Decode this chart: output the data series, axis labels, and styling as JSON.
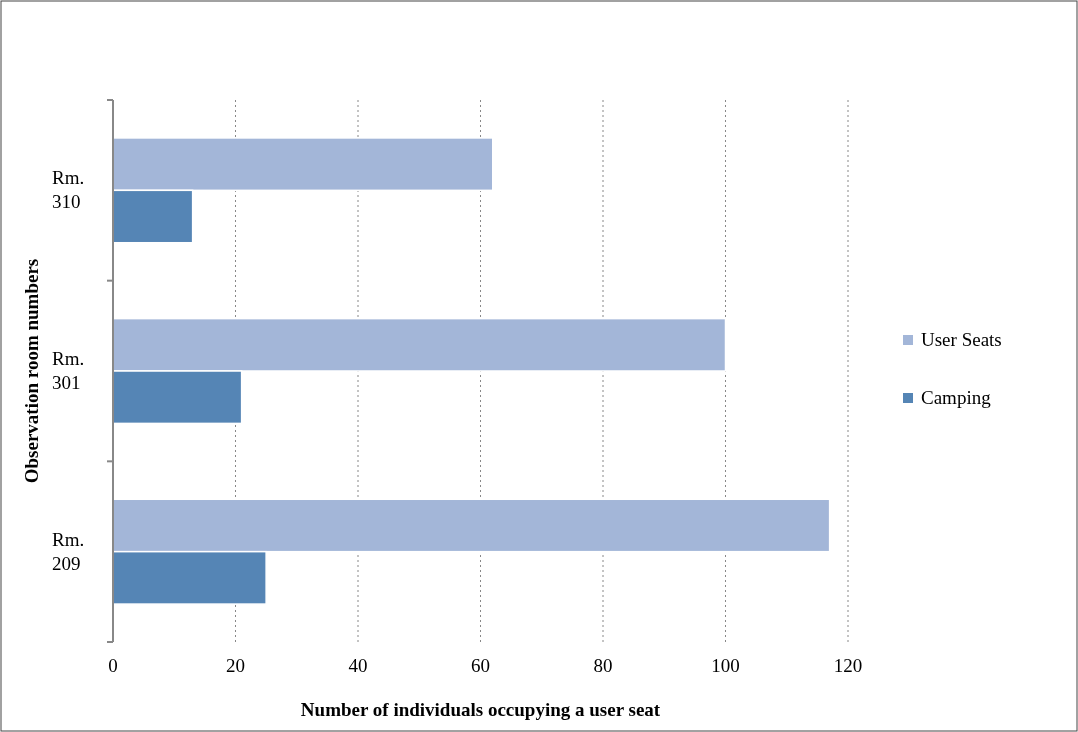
{
  "chart_data": {
    "type": "bar",
    "orientation": "horizontal",
    "xlabel": "Number of individuals occupying a user seat",
    "ylabel": "Observation room numbers",
    "categories": [
      "Rm. 310",
      "Rm. 301",
      "Rm. 209"
    ],
    "series": [
      {
        "name": "User Seats",
        "color": "#a3b6d8",
        "values": [
          62,
          100,
          117
        ]
      },
      {
        "name": "Camping",
        "color": "#5585b5",
        "values": [
          13,
          21,
          25
        ]
      }
    ],
    "xlim": [
      0,
      120
    ],
    "xticks": [
      0,
      20,
      40,
      60,
      80,
      100,
      120
    ],
    "grid": "x",
    "legend": "right"
  }
}
